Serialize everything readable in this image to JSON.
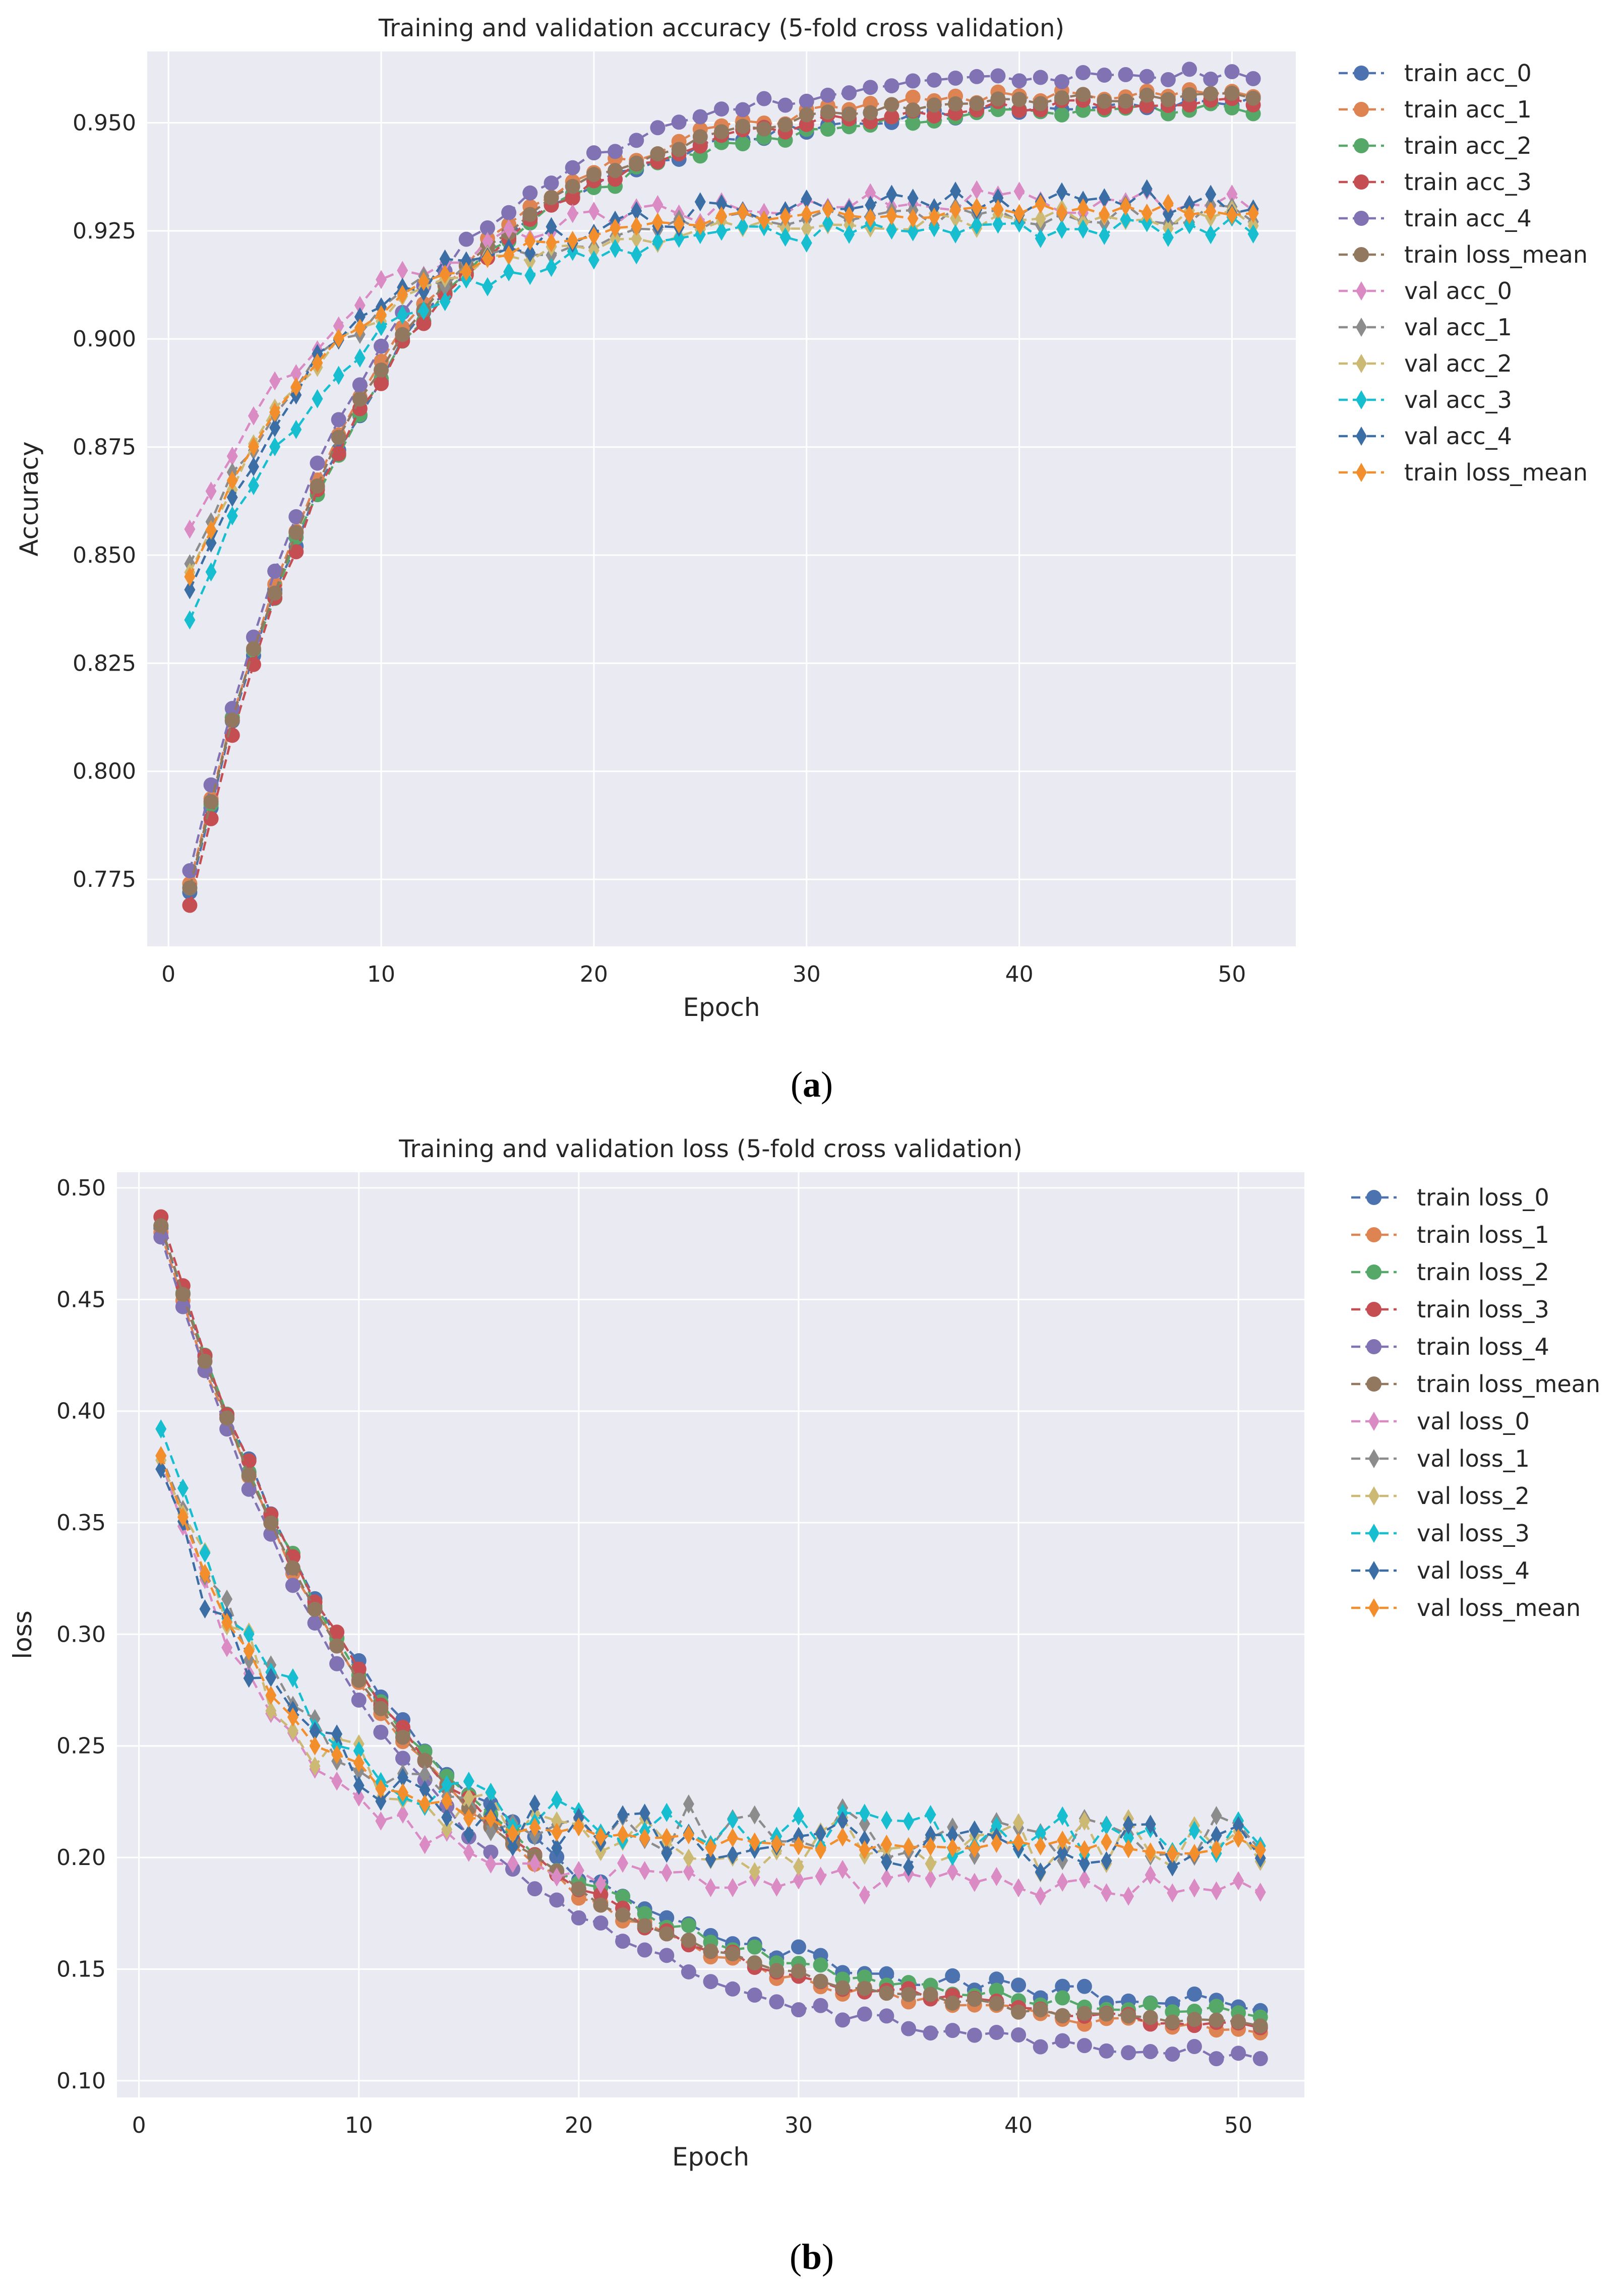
{
  "chart_data": [
    {
      "type": "line",
      "title": "Training and validation accuracy (5-fold cross validation)",
      "xlabel": "Epoch",
      "ylabel": "Accuracy",
      "xlim": [
        -1,
        53
      ],
      "ylim": [
        0.7595,
        0.9665
      ],
      "xticks": [
        "0",
        "10",
        "20",
        "30",
        "40",
        "50"
      ],
      "yticks": [
        "0.775",
        "0.800",
        "0.825",
        "0.850",
        "0.875",
        "0.900",
        "0.925",
        "0.950"
      ],
      "caption": {
        "open": "(",
        "letter": "a",
        "close": ")"
      },
      "legend_position": "outside-right-top",
      "series": [
        {
          "name": "train acc_0",
          "color": "#4c72b0",
          "marker": "circle",
          "start": 0.772,
          "plateau": 0.955,
          "noise": 0.0015
        },
        {
          "name": "train acc_1",
          "color": "#dd8452",
          "marker": "circle",
          "start": 0.774,
          "plateau": 0.958,
          "noise": 0.0015
        },
        {
          "name": "train acc_2",
          "color": "#55a868",
          "marker": "circle",
          "start": 0.773,
          "plateau": 0.954,
          "noise": 0.0015
        },
        {
          "name": "train acc_3",
          "color": "#c44e52",
          "marker": "circle",
          "start": 0.769,
          "plateau": 0.956,
          "noise": 0.0015
        },
        {
          "name": "train acc_4",
          "color": "#8172b3",
          "marker": "circle",
          "start": 0.777,
          "plateau": 0.962,
          "noise": 0.0015
        },
        {
          "name": "train loss_mean",
          "color": "#937860",
          "marker": "circle",
          "start": 0.773,
          "plateau": 0.957,
          "noise": 0.001
        },
        {
          "name": "val acc_0",
          "color": "#da8bc3",
          "marker": "diamond",
          "start": 0.856,
          "plateau": 0.932,
          "noise": 0.003
        },
        {
          "name": "val acc_1",
          "color": "#8c8c8c",
          "marker": "diamond",
          "start": 0.848,
          "plateau": 0.929,
          "noise": 0.0025
        },
        {
          "name": "val acc_2",
          "color": "#ccb974",
          "marker": "diamond",
          "start": 0.846,
          "plateau": 0.928,
          "noise": 0.0025
        },
        {
          "name": "val acc_3",
          "color": "#17becf",
          "marker": "diamond",
          "start": 0.835,
          "plateau": 0.926,
          "noise": 0.0025
        },
        {
          "name": "val acc_4",
          "color": "#3a6ea5",
          "marker": "diamond",
          "start": 0.842,
          "plateau": 0.932,
          "noise": 0.003
        },
        {
          "name": "train loss_mean",
          "color": "#f28e2b",
          "marker": "diamond",
          "start": 0.845,
          "plateau": 0.93,
          "noise": 0.0015
        }
      ]
    },
    {
      "type": "line",
      "title": "Training and validation loss (5-fold cross validation)",
      "xlabel": "Epoch",
      "ylabel": "loss",
      "xlim": [
        -1,
        53
      ],
      "ylim": [
        0.0925,
        0.507
      ],
      "xticks": [
        "0",
        "10",
        "20",
        "30",
        "40",
        "50"
      ],
      "yticks": [
        "0.10",
        "0.15",
        "0.20",
        "0.25",
        "0.30",
        "0.35",
        "0.40",
        "0.45",
        "0.50"
      ],
      "caption": {
        "open": "(",
        "letter": "b",
        "close": ")"
      },
      "legend_position": "outside-right-top",
      "series": [
        {
          "name": "train loss_0",
          "color": "#4c72b0",
          "marker": "circle",
          "start": 0.482,
          "plateau": 0.131,
          "noise": 0.004
        },
        {
          "name": "train loss_1",
          "color": "#dd8452",
          "marker": "circle",
          "start": 0.48,
          "plateau": 0.12,
          "noise": 0.003
        },
        {
          "name": "train loss_2",
          "color": "#55a868",
          "marker": "circle",
          "start": 0.483,
          "plateau": 0.127,
          "noise": 0.003
        },
        {
          "name": "train loss_3",
          "color": "#c44e52",
          "marker": "circle",
          "start": 0.487,
          "plateau": 0.122,
          "noise": 0.003
        },
        {
          "name": "train loss_4",
          "color": "#8172b3",
          "marker": "circle",
          "start": 0.478,
          "plateau": 0.108,
          "noise": 0.003
        },
        {
          "name": "train loss_mean",
          "color": "#937860",
          "marker": "circle",
          "start": 0.483,
          "plateau": 0.122,
          "noise": 0.002
        },
        {
          "name": "val loss_0",
          "color": "#da8bc3",
          "marker": "diamond",
          "start": 0.378,
          "plateau": 0.188,
          "noise": 0.006
        },
        {
          "name": "val loss_1",
          "color": "#8c8c8c",
          "marker": "diamond",
          "start": 0.38,
          "plateau": 0.21,
          "noise": 0.012
        },
        {
          "name": "val loss_2",
          "color": "#ccb974",
          "marker": "diamond",
          "start": 0.378,
          "plateau": 0.205,
          "noise": 0.013
        },
        {
          "name": "val loss_3",
          "color": "#17becf",
          "marker": "diamond",
          "start": 0.392,
          "plateau": 0.21,
          "noise": 0.01
        },
        {
          "name": "val loss_4",
          "color": "#3a6ea5",
          "marker": "diamond",
          "start": 0.374,
          "plateau": 0.205,
          "noise": 0.012
        },
        {
          "name": "val loss_mean",
          "color": "#f28e2b",
          "marker": "diamond",
          "start": 0.38,
          "plateau": 0.205,
          "noise": 0.004
        }
      ]
    }
  ]
}
